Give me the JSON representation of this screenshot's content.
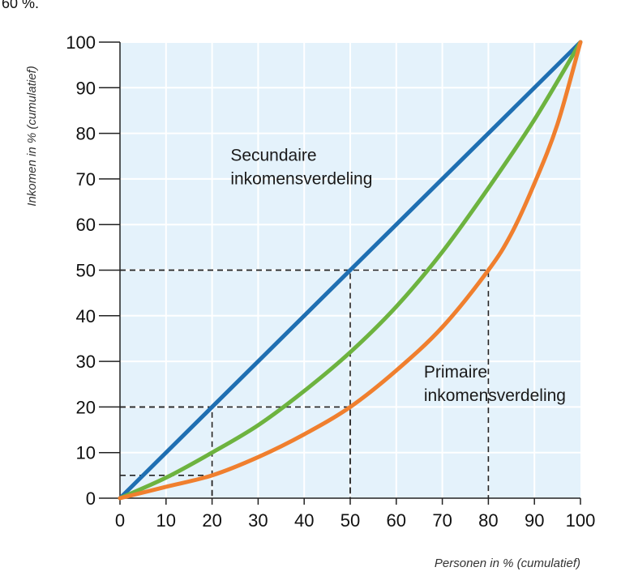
{
  "header_fragment": "60 %.",
  "chart_data": {
    "type": "line",
    "xlabel": "Personen in % (cumulatief)",
    "ylabel": "Inkomen in % (cumulatief)",
    "xlim": [
      0,
      100
    ],
    "ylim": [
      0,
      100
    ],
    "xticks": [
      "0",
      "10",
      "20",
      "30",
      "40",
      "50",
      "60",
      "70",
      "80",
      "90",
      "100"
    ],
    "yticks": [
      "0",
      "10",
      "20",
      "30",
      "40",
      "50",
      "60",
      "70",
      "80",
      "90",
      "100"
    ],
    "grid": true,
    "series": [
      {
        "key": "equality",
        "color": "#1f6fb2",
        "x": [
          0,
          100
        ],
        "y": [
          0,
          100
        ]
      },
      {
        "key": "secondary",
        "color": "#6db33f",
        "x": [
          0,
          10,
          20,
          30,
          40,
          50,
          60,
          70,
          80,
          90,
          100
        ],
        "y": [
          0,
          4.5,
          10,
          16,
          23.5,
          32,
          42,
          54,
          68,
          83,
          100
        ]
      },
      {
        "key": "primary",
        "color": "#f07f2e",
        "x": [
          0,
          10,
          20,
          30,
          40,
          50,
          60,
          70,
          80,
          85,
          90,
          95,
          100
        ],
        "y": [
          0,
          2.5,
          5,
          9,
          14,
          20,
          28,
          37.5,
          50,
          58,
          69,
          82,
          100
        ]
      }
    ],
    "reference_lines": [
      {
        "x": 20,
        "y": 20
      },
      {
        "x": 50,
        "y": 50
      },
      {
        "x": 50,
        "y": 20
      },
      {
        "x": 80,
        "y": 50
      },
      {
        "x": 20,
        "y": 5
      }
    ],
    "annotations": [
      {
        "key": "secondary_label",
        "lines": [
          "Secundaire",
          "inkomensverdeling"
        ],
        "x": 24,
        "y": 74
      },
      {
        "key": "primary_label",
        "lines": [
          "Primaire",
          "inkomensverdeling"
        ],
        "x": 66,
        "y": 26.5
      }
    ],
    "colors": {
      "plot_background": "#e4f2fb",
      "grid": "#ffffff",
      "axis": "#222222",
      "reference_line": "#222222"
    }
  }
}
